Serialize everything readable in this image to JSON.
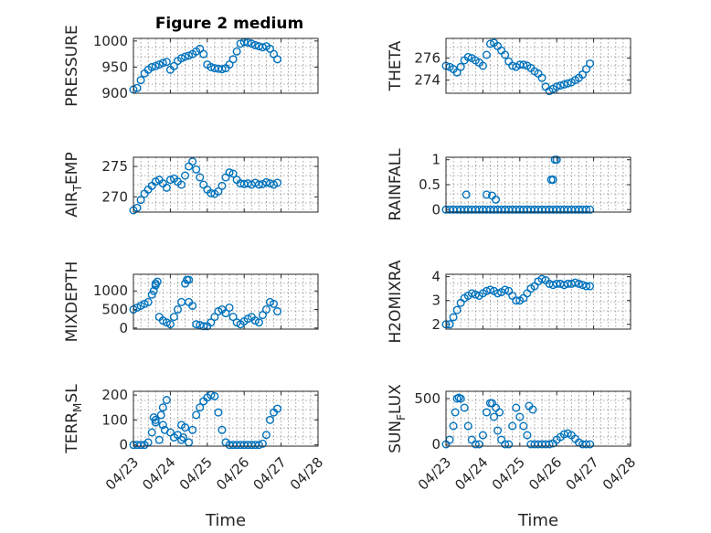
{
  "figure_title": "Figure 2 medium",
  "colors": {
    "marker": "#0072BD",
    "axis": "#262626",
    "grid": "#8c8c8c"
  },
  "chart_data": [
    {
      "type": "scatter",
      "title": "Figure 2 medium",
      "ylabel": "PRESSURE",
      "ylabel_sub": [],
      "xlabel": "",
      "x_ticks": [],
      "y_ticks": [
        "900",
        "950",
        "1000"
      ],
      "ylim": [
        900,
        1005
      ],
      "xlim": [
        "04/23",
        "04/28"
      ],
      "grid": true,
      "series": [
        {
          "x": [
            0.0,
            0.1,
            0.2,
            0.3,
            0.4,
            0.5,
            0.6,
            0.7,
            0.8,
            0.9,
            1.0,
            1.1,
            1.2,
            1.3,
            1.4,
            1.5,
            1.6,
            1.7,
            1.8,
            1.9,
            2.0,
            2.1,
            2.2,
            2.3,
            2.4,
            2.5,
            2.6,
            2.7,
            2.8,
            2.9,
            3.0,
            3.1,
            3.2,
            3.3,
            3.4,
            3.5,
            3.6,
            3.7,
            3.8,
            3.9
          ],
          "y": [
            907,
            910,
            925,
            938,
            945,
            950,
            952,
            955,
            958,
            960,
            945,
            952,
            962,
            967,
            970,
            972,
            975,
            980,
            985,
            975,
            955,
            950,
            948,
            947,
            946,
            948,
            955,
            965,
            980,
            995,
            998,
            997,
            995,
            992,
            990,
            988,
            990,
            985,
            975,
            965
          ]
        }
      ]
    },
    {
      "type": "scatter",
      "ylabel": "THETA",
      "ylabel_sub": [],
      "xlabel": "",
      "x_ticks": [],
      "y_ticks": [
        "274",
        "276"
      ],
      "ylim": [
        272.8,
        277.8
      ],
      "xlim": [
        "04/23",
        "04/28"
      ],
      "grid": true,
      "series": [
        {
          "x": [
            0.0,
            0.1,
            0.2,
            0.3,
            0.4,
            0.5,
            0.6,
            0.7,
            0.8,
            0.9,
            1.0,
            1.1,
            1.2,
            1.3,
            1.4,
            1.5,
            1.6,
            1.7,
            1.8,
            1.9,
            2.0,
            2.1,
            2.2,
            2.3,
            2.4,
            2.5,
            2.6,
            2.7,
            2.8,
            2.9,
            3.0,
            3.1,
            3.2,
            3.3,
            3.4,
            3.5,
            3.6,
            3.7,
            3.8,
            3.9
          ],
          "y": [
            275.3,
            275.2,
            275.0,
            274.7,
            275.2,
            275.8,
            276.1,
            276.0,
            275.8,
            275.6,
            275.3,
            276.3,
            277.3,
            277.4,
            277.1,
            276.7,
            276.3,
            275.7,
            275.3,
            275.2,
            275.4,
            275.4,
            275.3,
            275.1,
            274.8,
            274.6,
            274.2,
            273.4,
            273.0,
            273.2,
            273.4,
            273.5,
            273.6,
            273.7,
            273.8,
            274.0,
            274.2,
            274.5,
            275.0,
            275.5
          ]
        }
      ]
    },
    {
      "type": "scatter",
      "ylabel": "AIR",
      "ylabel_sub": [
        "T",
        "EMP"
      ],
      "xlabel": "",
      "x_ticks": [],
      "y_ticks": [
        "270",
        "275"
      ],
      "ylim": [
        267.5,
        276.5
      ],
      "xlim": [
        "04/23",
        "04/28"
      ],
      "grid": true,
      "series": [
        {
          "x": [
            0.0,
            0.1,
            0.2,
            0.3,
            0.4,
            0.5,
            0.6,
            0.7,
            0.8,
            0.9,
            1.0,
            1.1,
            1.2,
            1.3,
            1.4,
            1.5,
            1.6,
            1.7,
            1.8,
            1.9,
            2.0,
            2.1,
            2.2,
            2.3,
            2.4,
            2.5,
            2.6,
            2.7,
            2.8,
            2.9,
            3.0,
            3.1,
            3.2,
            3.3,
            3.4,
            3.5,
            3.6,
            3.7,
            3.8,
            3.9
          ],
          "y": [
            267.8,
            268.2,
            269.5,
            270.5,
            271.2,
            271.8,
            272.5,
            272.8,
            272.2,
            271.5,
            272.8,
            273.0,
            272.5,
            272.0,
            273.5,
            275.0,
            275.8,
            274.5,
            273.2,
            272.0,
            271.2,
            270.6,
            270.5,
            270.9,
            271.8,
            273.2,
            274.0,
            273.8,
            272.8,
            272.2,
            272.1,
            272.2,
            272.0,
            272.3,
            272.0,
            272.1,
            272.4,
            272.2,
            272.0,
            272.3
          ]
        }
      ]
    },
    {
      "type": "scatter",
      "ylabel": "RAINFALL",
      "ylabel_sub": [],
      "xlabel": "",
      "x_ticks": [],
      "y_ticks": [
        "0",
        "0.5",
        "1"
      ],
      "ylim": [
        -0.05,
        1.05
      ],
      "xlim": [
        "04/23",
        "04/28"
      ],
      "grid": true,
      "series": [
        {
          "x": [
            0.0,
            0.1,
            0.2,
            0.3,
            0.4,
            0.5,
            0.6,
            0.7,
            0.8,
            0.9,
            1.0,
            1.1,
            1.2,
            1.3,
            1.4,
            1.5,
            1.6,
            1.7,
            1.8,
            1.9,
            2.0,
            2.1,
            2.2,
            2.3,
            2.4,
            2.5,
            2.6,
            2.7,
            2.8,
            2.9,
            3.0,
            3.1,
            3.2,
            3.3,
            3.4,
            3.5,
            3.6,
            3.7,
            3.8,
            3.9,
            0.55,
            1.1,
            1.25,
            1.35,
            2.85,
            2.9,
            2.95,
            3.0
          ],
          "y": [
            0,
            0,
            0,
            0,
            0,
            0,
            0,
            0,
            0,
            0,
            0,
            0,
            0,
            0,
            0,
            0,
            0,
            0,
            0,
            0,
            0,
            0,
            0,
            0,
            0,
            0,
            0,
            0,
            0,
            0,
            0,
            0,
            0,
            0,
            0,
            0,
            0,
            0,
            0,
            0,
            0.3,
            0.3,
            0.28,
            0.2,
            0.6,
            0.6,
            1.0,
            1.0
          ]
        }
      ]
    },
    {
      "type": "scatter",
      "ylabel": "MIXDEPTH",
      "ylabel_sub": [],
      "xlabel": "",
      "x_ticks": [],
      "y_ticks": [
        "0",
        "500",
        "1000"
      ],
      "ylim": [
        -30,
        1450
      ],
      "xlim": [
        "04/23",
        "04/28"
      ],
      "grid": true,
      "series": [
        {
          "x": [
            0.0,
            0.1,
            0.2,
            0.3,
            0.4,
            0.5,
            0.6,
            0.7,
            0.8,
            0.9,
            1.0,
            1.1,
            1.2,
            1.3,
            1.4,
            1.5,
            1.6,
            1.7,
            1.8,
            1.9,
            2.0,
            2.1,
            2.2,
            2.3,
            2.4,
            2.5,
            2.6,
            2.7,
            2.8,
            2.9,
            3.0,
            3.1,
            3.2,
            3.3,
            3.4,
            3.5,
            3.6,
            3.7,
            3.8,
            3.9,
            0.55,
            0.6,
            0.65,
            1.45,
            1.5
          ],
          "y": [
            500,
            550,
            600,
            650,
            700,
            900,
            1200,
            300,
            200,
            150,
            100,
            300,
            500,
            700,
            1200,
            1300,
            600,
            100,
            80,
            50,
            50,
            150,
            300,
            450,
            500,
            400,
            550,
            300,
            150,
            100,
            180,
            250,
            300,
            200,
            150,
            350,
            500,
            700,
            650,
            450,
            1000,
            1150,
            1250,
            1300,
            700
          ]
        }
      ]
    },
    {
      "type": "scatter",
      "ylabel": "H2OMIXRA",
      "ylabel_sub": [],
      "xlabel": "",
      "x_ticks": [],
      "y_ticks": [
        "2",
        "3",
        "4"
      ],
      "ylim": [
        1.8,
        4.1
      ],
      "xlim": [
        "04/23",
        "04/28"
      ],
      "grid": true,
      "series": [
        {
          "x": [
            0.0,
            0.1,
            0.2,
            0.3,
            0.4,
            0.5,
            0.6,
            0.7,
            0.8,
            0.9,
            1.0,
            1.1,
            1.2,
            1.3,
            1.4,
            1.5,
            1.6,
            1.7,
            1.8,
            1.9,
            2.0,
            2.1,
            2.2,
            2.3,
            2.4,
            2.5,
            2.6,
            2.7,
            2.8,
            2.9,
            3.0,
            3.1,
            3.2,
            3.3,
            3.4,
            3.5,
            3.6,
            3.7,
            3.8,
            3.9
          ],
          "y": [
            2.0,
            2.0,
            2.3,
            2.6,
            2.9,
            3.1,
            3.2,
            3.3,
            3.25,
            3.2,
            3.3,
            3.4,
            3.45,
            3.4,
            3.3,
            3.35,
            3.45,
            3.4,
            3.2,
            3.0,
            3.0,
            3.1,
            3.3,
            3.5,
            3.6,
            3.8,
            3.9,
            3.85,
            3.7,
            3.65,
            3.7,
            3.7,
            3.65,
            3.7,
            3.7,
            3.75,
            3.7,
            3.65,
            3.6,
            3.6
          ]
        }
      ]
    },
    {
      "type": "scatter",
      "ylabel": "TERR",
      "ylabel_sub": [
        "M",
        "SL"
      ],
      "xlabel": "Time",
      "x_ticks": [
        "04/23",
        "04/24",
        "04/25",
        "04/26",
        "04/27",
        "04/28"
      ],
      "y_ticks": [
        "0",
        "100",
        "200"
      ],
      "ylim": [
        -5,
        215
      ],
      "xlim": [
        "04/23",
        "04/28"
      ],
      "grid": true,
      "series": [
        {
          "x": [
            0.0,
            0.1,
            0.2,
            0.3,
            0.4,
            0.5,
            0.6,
            0.7,
            0.8,
            0.9,
            1.0,
            1.1,
            1.2,
            1.3,
            1.4,
            1.5,
            1.6,
            1.7,
            1.8,
            1.9,
            2.0,
            2.1,
            2.2,
            2.3,
            2.4,
            2.5,
            2.6,
            2.7,
            2.8,
            2.9,
            3.0,
            3.1,
            3.2,
            3.3,
            3.4,
            3.5,
            3.6,
            3.7,
            3.8,
            3.9,
            0.55,
            0.6,
            0.75,
            0.8,
            0.85,
            1.3,
            1.35
          ],
          "y": [
            0,
            0,
            0,
            0,
            10,
            50,
            100,
            20,
            80,
            180,
            50,
            30,
            40,
            20,
            70,
            10,
            60,
            120,
            150,
            175,
            190,
            200,
            195,
            130,
            60,
            10,
            0,
            0,
            0,
            0,
            0,
            0,
            0,
            0,
            0,
            5,
            40,
            100,
            130,
            145,
            110,
            90,
            120,
            150,
            60,
            80,
            30
          ]
        }
      ]
    },
    {
      "type": "scatter",
      "ylabel": "SUN",
      "ylabel_sub": [
        "F",
        "LUX"
      ],
      "xlabel": "Time",
      "x_ticks": [
        "04/23",
        "04/24",
        "04/25",
        "04/26",
        "04/27",
        "04/28"
      ],
      "y_ticks": [
        "0",
        "500"
      ],
      "ylim": [
        -20,
        580
      ],
      "xlim": [
        "04/23",
        "04/28"
      ],
      "grid": true,
      "series": [
        {
          "x": [
            0.0,
            0.1,
            0.2,
            0.3,
            0.4,
            0.5,
            0.6,
            0.7,
            0.8,
            0.9,
            1.0,
            1.1,
            1.2,
            1.3,
            1.4,
            1.5,
            1.6,
            1.7,
            1.8,
            1.9,
            2.0,
            2.1,
            2.2,
            2.3,
            2.4,
            2.5,
            2.6,
            2.7,
            2.8,
            2.9,
            3.0,
            3.1,
            3.2,
            3.3,
            3.4,
            3.5,
            3.6,
            3.7,
            3.8,
            3.9,
            0.25,
            0.35,
            1.25,
            1.35,
            1.45,
            2.25,
            2.35
          ],
          "y": [
            0,
            50,
            200,
            500,
            500,
            400,
            200,
            50,
            0,
            0,
            100,
            350,
            450,
            300,
            150,
            50,
            0,
            0,
            200,
            400,
            300,
            200,
            100,
            0,
            0,
            0,
            0,
            0,
            0,
            10,
            50,
            80,
            110,
            120,
            100,
            60,
            20,
            0,
            0,
            0,
            350,
            510,
            450,
            400,
            350,
            420,
            380
          ]
        }
      ]
    }
  ]
}
